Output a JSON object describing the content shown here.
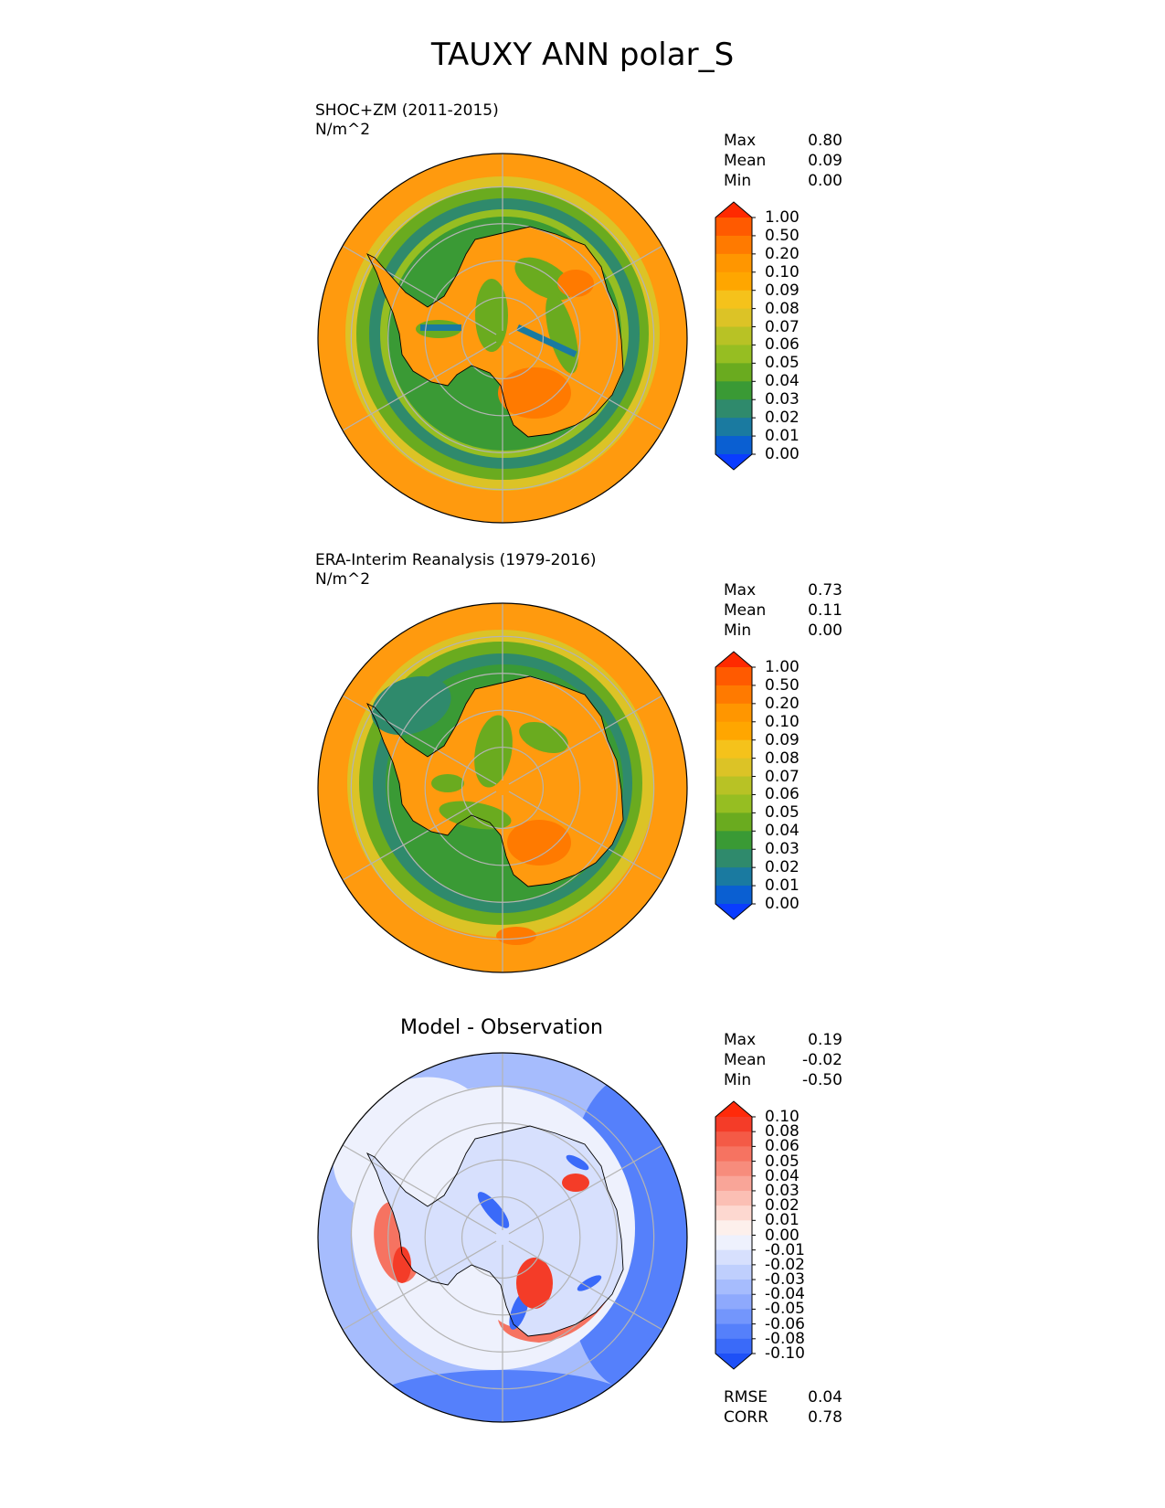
{
  "title": "TAUXY ANN polar_S",
  "panels": [
    {
      "id": "test",
      "label": "SHOC+ZM (2011-2015)",
      "units": "N/m^2",
      "stats": [
        {
          "name": "Max",
          "value": "0.80"
        },
        {
          "name": "Mean",
          "value": "0.09"
        },
        {
          "name": "Min",
          "value": "0.00"
        }
      ],
      "colorbar": {
        "ticks": [
          "1.00",
          "0.50",
          "0.20",
          "0.10",
          "0.09",
          "0.08",
          "0.07",
          "0.06",
          "0.05",
          "0.04",
          "0.03",
          "0.02",
          "0.01",
          "0.00"
        ],
        "colors": [
          "#ff2a00",
          "#ff5a00",
          "#ff7a00",
          "#ff9600",
          "#ffa600",
          "#f5c21b",
          "#dcc326",
          "#b8c225",
          "#96be22",
          "#6aab1f",
          "#3a9a35",
          "#2f8a6c",
          "#1a7aa0",
          "#0a5fd2",
          "#0a3cff"
        ]
      }
    },
    {
      "id": "reference",
      "label": "ERA-Interim Reanalysis (1979-2016)",
      "units": "N/m^2",
      "stats": [
        {
          "name": "Max",
          "value": "0.73"
        },
        {
          "name": "Mean",
          "value": "0.11"
        },
        {
          "name": "Min",
          "value": "0.00"
        }
      ],
      "colorbar": {
        "ticks": [
          "1.00",
          "0.50",
          "0.20",
          "0.10",
          "0.09",
          "0.08",
          "0.07",
          "0.06",
          "0.05",
          "0.04",
          "0.03",
          "0.02",
          "0.01",
          "0.00"
        ],
        "colors": [
          "#ff2a00",
          "#ff5a00",
          "#ff7a00",
          "#ff9600",
          "#ffa600",
          "#f5c21b",
          "#dcc326",
          "#b8c225",
          "#96be22",
          "#6aab1f",
          "#3a9a35",
          "#2f8a6c",
          "#1a7aa0",
          "#0a5fd2",
          "#0a3cff"
        ]
      }
    },
    {
      "id": "difference",
      "title": "Model - Observation",
      "stats": [
        {
          "name": "Max",
          "value": "0.19"
        },
        {
          "name": "Mean",
          "value": "-0.02"
        },
        {
          "name": "Min",
          "value": "-0.50"
        }
      ],
      "metrics": [
        {
          "name": "RMSE",
          "value": "0.04"
        },
        {
          "name": "CORR",
          "value": "0.78"
        }
      ],
      "colorbar": {
        "ticks": [
          "0.10",
          "0.08",
          "0.06",
          "0.05",
          "0.04",
          "0.03",
          "0.02",
          "0.01",
          "0.00",
          "-0.01",
          "-0.02",
          "-0.03",
          "-0.04",
          "-0.05",
          "-0.06",
          "-0.08",
          "-0.10"
        ],
        "colors": [
          "#ff2a0a",
          "#f43c28",
          "#f45a46",
          "#f67361",
          "#f78c7c",
          "#f9a598",
          "#fbbfb4",
          "#fdd8d0",
          "#fdf0ec",
          "#eef1fd",
          "#d7e0fd",
          "#bfcffd",
          "#a6bcfd",
          "#8ea9fd",
          "#7396fc",
          "#5580fb",
          "#3a6af9",
          "#1e50f7"
        ]
      }
    }
  ]
}
